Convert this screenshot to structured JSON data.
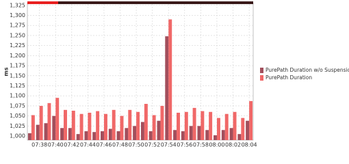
{
  "chart_data": {
    "type": "bar",
    "y_label": "ms",
    "categories": [
      null,
      "07:38",
      null,
      "07:40",
      null,
      "07:42",
      null,
      "07:44",
      null,
      "07:46",
      null,
      "07:48",
      null,
      "07:50",
      null,
      "07:52",
      null,
      "07:54",
      null,
      "07:56",
      null,
      "07:58",
      null,
      "08:00",
      null,
      "08:02",
      null,
      "08:04"
    ],
    "series": [
      {
        "name": "PurePath Duration w/o Suspension",
        "color": "#a24f5c",
        "values": [
          1007,
          1028,
          1032,
          1050,
          1020,
          1020,
          1005,
          1012,
          1010,
          1012,
          1018,
          1012,
          1020,
          1025,
          1035,
          1012,
          1038,
          1248,
          1015,
          1012,
          1025,
          1025,
          1015,
          1002,
          1015,
          1020,
          1005,
          1038
        ]
      },
      {
        "name": "PurePath Duration",
        "color": "#f06868",
        "values": [
          1052,
          1075,
          1082,
          1095,
          1065,
          1063,
          1055,
          1058,
          1062,
          1055,
          1065,
          1050,
          1065,
          1060,
          1080,
          1052,
          1075,
          1290,
          1058,
          1060,
          1070,
          1062,
          1060,
          1045,
          1055,
          1060,
          1045,
          1087
        ]
      }
    ],
    "ylim": [
      990,
      1328
    ],
    "yticks": [
      {
        "value": 1000,
        "label": "1,000"
      },
      {
        "value": 1025,
        "label": "1,025"
      },
      {
        "value": 1050,
        "label": "1,050"
      },
      {
        "value": 1075,
        "label": "1,075"
      },
      {
        "value": 1100,
        "label": "1,100"
      },
      {
        "value": 1125,
        "label": "1,125"
      },
      {
        "value": 1150,
        "label": "1,150"
      },
      {
        "value": 1175,
        "label": "1,175"
      },
      {
        "value": 1200,
        "label": "1,200"
      },
      {
        "value": 1225,
        "label": "1,225"
      },
      {
        "value": 1250,
        "label": "1,250"
      },
      {
        "value": 1275,
        "label": "1,275"
      },
      {
        "value": 1300,
        "label": "1,300"
      },
      {
        "value": 1325,
        "label": "1,325"
      }
    ],
    "grid": true
  }
}
